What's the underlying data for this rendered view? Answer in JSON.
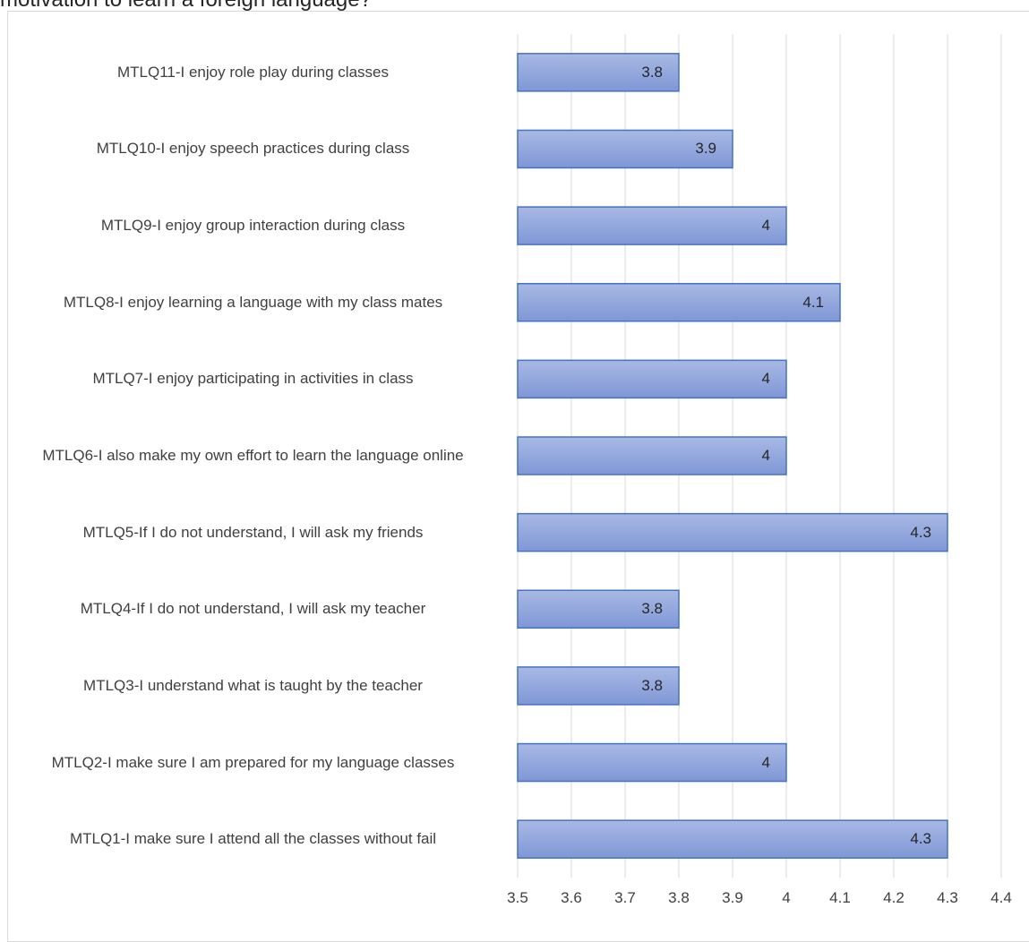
{
  "title": "motivation to learn a foreign language?",
  "chart_data": {
    "type": "bar",
    "orientation": "horizontal",
    "categories": [
      "MTLQ11-I enjoy role play during classes",
      "MTLQ10-I enjoy speech practices during class",
      "MTLQ9-I enjoy group interaction during class",
      "MTLQ8-I enjoy learning a language with my class mates",
      "MTLQ7-I enjoy participating in activities  in class",
      "MTLQ6-I also make my own effort to learn the language online",
      "MTLQ5-If I do not understand, I will ask my friends",
      "MTLQ4-If I do not understand, I will ask my teacher",
      "MTLQ3-I understand what is taught by the teacher",
      "MTLQ2-I make sure I am prepared for my language classes",
      "MTLQ1-I make sure I attend all the classes without fail"
    ],
    "values": [
      3.8,
      3.9,
      4,
      4.1,
      4,
      4,
      4.3,
      3.8,
      3.8,
      4,
      4.3
    ],
    "data_labels": [
      "3.8",
      "3.9",
      "4",
      "4.1",
      "4",
      "4",
      "4.3",
      "3.8",
      "3.8",
      "4",
      "4.3"
    ],
    "xlim": [
      3.5,
      4.4
    ],
    "ticks": [
      "3.5",
      "3.6",
      "3.7",
      "3.8",
      "3.9",
      "4",
      "4.1",
      "4.2",
      "4.3",
      "4.4"
    ],
    "grid": true,
    "bar_color_top": "#a9b9e4",
    "bar_color_bottom": "#7f97d6",
    "bar_border": "#4472c4",
    "grid_color": "#d9d9d9"
  }
}
